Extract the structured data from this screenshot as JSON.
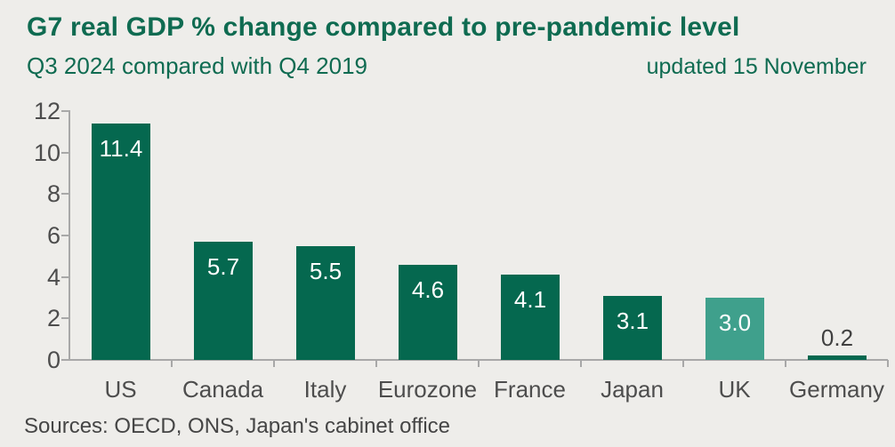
{
  "header": {
    "title": "G7 real GDP % change compared to pre-pandemic level",
    "subtitle": "Q3 2024 compared with Q4 2019",
    "updated": "updated 15 November"
  },
  "footer": {
    "sources": "Sources: OECD, ONS, Japan's cabinet office"
  },
  "colors": {
    "background": "#EEEDEA",
    "heading_green": "#0F6B51",
    "bar_green": "#05684F",
    "uk_highlight_teal": "#3FA08C",
    "axis_gray": "#A8A8A8",
    "tick_label_gray": "#4D4D4D",
    "value_label_white": "#FFFFFF",
    "outside_value_label_gray": "#404040"
  },
  "chart_data": {
    "type": "bar",
    "title": "G7 real GDP % change compared to pre-pandemic level",
    "subtitle": "Q3 2024 compared with Q4 2019",
    "annotation": "updated 15 November",
    "categories": [
      "US",
      "Canada",
      "Italy",
      "Eurozone",
      "France",
      "Japan",
      "UK",
      "Germany"
    ],
    "values": [
      11.4,
      5.7,
      5.5,
      4.6,
      4.1,
      3.1,
      3.0,
      0.2
    ],
    "value_labels": [
      "11.4",
      "5.7",
      "5.5",
      "4.6",
      "4.1",
      "3.1",
      "3.0",
      "0.2"
    ],
    "bar_colors": [
      "#05684F",
      "#05684F",
      "#05684F",
      "#05684F",
      "#05684F",
      "#05684F",
      "#3FA08C",
      "#05684F"
    ],
    "highlighted_category": "UK",
    "xlabel": "",
    "ylabel": "",
    "ylim": [
      0,
      12
    ],
    "yticks": [
      0,
      2,
      4,
      6,
      8,
      10,
      12
    ],
    "grid": false,
    "legend": false,
    "source": "Sources: OECD, ONS, Japan's cabinet office"
  }
}
